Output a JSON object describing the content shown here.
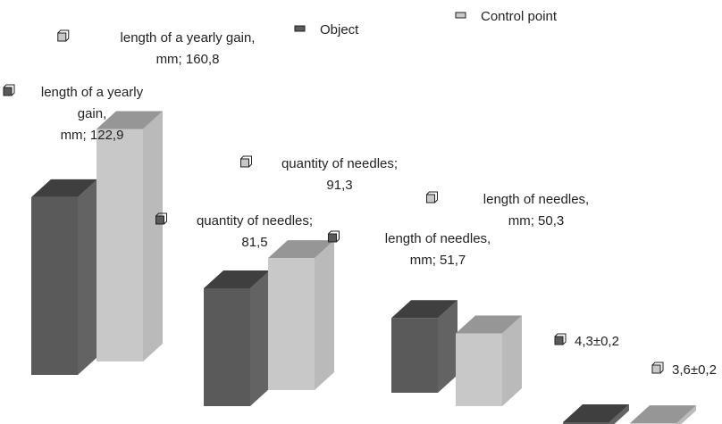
{
  "chart_data": {
    "type": "bar3d",
    "categories": [
      null,
      null,
      null,
      null
    ],
    "series": [
      {
        "name": "Object",
        "color": "#5a5a5a",
        "values": [
          122.9,
          81.5,
          51.7,
          4.3
        ],
        "value_labels": [
          "length of a yearly\ngain,\nmm; 122,9",
          "quantity of needles;\n81,5",
          "length of needles,\nmm; 51,7",
          "4,3±0,2"
        ]
      },
      {
        "name": "Control point",
        "color": "#c8c8c8",
        "values": [
          160.8,
          91.3,
          50.3,
          3.6
        ],
        "value_labels": [
          "length of a yearly gain,\nmm; 160,8",
          "quantity of needles;\n91,3",
          "length of needles,\nmm; 50,3",
          "3,6±0,2"
        ]
      }
    ]
  }
}
